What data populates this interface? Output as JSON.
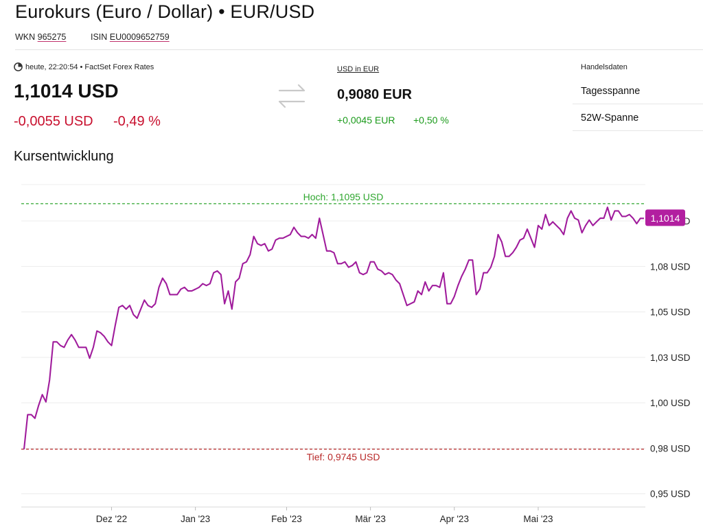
{
  "header": {
    "title": "Eurokurs (Euro / Dollar) • EUR/USD",
    "wkn_label": "WKN",
    "wkn": "965275",
    "isin_label": "ISIN",
    "isin": "EU0009652759"
  },
  "quote": {
    "timestamp": "heute, 22:20:54 • FactSet Forex Rates",
    "price": "1,1014 USD",
    "change_abs": "-0,0055 USD",
    "change_pct": "-0,49 %"
  },
  "inverse": {
    "label": "USD in EUR",
    "price": "0,9080 EUR",
    "change_abs": "+0,0045 EUR",
    "change_pct": "+0,50 %"
  },
  "trading": {
    "title": "Handelsdaten",
    "rows": [
      "Tagesspanne",
      "52W-Spanne"
    ]
  },
  "section_title": "Kursentwicklung",
  "colors": {
    "line": "#a01c9c",
    "badge": "#b21fa0",
    "high": "#2ea62e",
    "low": "#b82828",
    "negative": "#c8102e",
    "positive": "#1a9a1a"
  },
  "chart_data": {
    "type": "line",
    "ylim": [
      0.945,
      1.12
    ],
    "yticks": [
      {
        "v": 0.95,
        "label": "0,95 USD"
      },
      {
        "v": 0.975,
        "label": "0,98 USD"
      },
      {
        "v": 1.0,
        "label": "1,00 USD"
      },
      {
        "v": 1.025,
        "label": "1,03 USD"
      },
      {
        "v": 1.05,
        "label": "1,05 USD"
      },
      {
        "v": 1.075,
        "label": "1,08 USD"
      },
      {
        "v": 1.1,
        "label": "1,10 USD"
      }
    ],
    "xticks": [
      {
        "i": 24,
        "label": "Dez '22"
      },
      {
        "i": 47,
        "label": "Jan '23"
      },
      {
        "i": 72,
        "label": "Feb '23"
      },
      {
        "i": 95,
        "label": "Mär '23"
      },
      {
        "i": 118,
        "label": "Apr '23"
      },
      {
        "i": 141,
        "label": "Mai '23"
      }
    ],
    "high": {
      "value": 1.1095,
      "label": "Hoch: 1,1095 USD"
    },
    "low": {
      "value": 0.9745,
      "label": "Tief: 0,9745 USD"
    },
    "last_label": "1,1014",
    "values": [
      0.9745,
      0.9935,
      0.9935,
      0.9915,
      0.9985,
      1.0045,
      1.0005,
      1.0125,
      1.0335,
      1.0335,
      1.0315,
      1.0305,
      1.0345,
      1.0375,
      1.0345,
      1.0305,
      1.0305,
      1.0305,
      1.0245,
      1.0305,
      1.0395,
      1.0385,
      1.0365,
      1.0335,
      1.0315,
      1.0425,
      1.0525,
      1.0535,
      1.0515,
      1.0535,
      1.0485,
      1.0465,
      1.0515,
      1.0565,
      1.0535,
      1.0525,
      1.0545,
      1.0635,
      1.0685,
      1.0655,
      1.0595,
      1.0595,
      1.0595,
      1.0625,
      1.0635,
      1.0615,
      1.0615,
      1.0625,
      1.0635,
      1.0655,
      1.0645,
      1.0655,
      1.0715,
      1.0725,
      1.0705,
      1.0545,
      1.0615,
      1.0515,
      1.0665,
      1.0685,
      1.0765,
      1.0775,
      1.0815,
      1.0915,
      1.0875,
      1.0865,
      1.0875,
      1.0835,
      1.0845,
      1.0895,
      1.0905,
      1.0905,
      1.0915,
      1.0925,
      1.0965,
      1.0935,
      1.0915,
      1.0915,
      1.0905,
      1.0925,
      1.0905,
      1.1015,
      1.0925,
      1.0835,
      1.0835,
      1.0825,
      1.0765,
      1.0765,
      1.0775,
      1.0745,
      1.0755,
      1.0775,
      1.0715,
      1.0705,
      1.0715,
      1.0775,
      1.0775,
      1.0735,
      1.0725,
      1.0705,
      1.0715,
      1.0705,
      1.0675,
      1.0655,
      1.0595,
      1.0535,
      1.0545,
      1.0555,
      1.0615,
      1.0595,
      1.0665,
      1.0615,
      1.0645,
      1.0645,
      1.0635,
      1.0715,
      1.0545,
      1.0545,
      1.0585,
      1.0645,
      1.0695,
      1.0735,
      1.0785,
      1.0785,
      1.0595,
      1.0625,
      1.0715,
      1.0715,
      1.0745,
      1.0805,
      1.0925,
      1.0885,
      1.0805,
      1.0805,
      1.0825,
      1.0855,
      1.0895,
      1.0905,
      1.0955,
      1.0905,
      1.0855,
      1.0975,
      1.0955,
      1.1035,
      1.0975,
      1.0995,
      1.0975,
      1.0955,
      1.0925,
      1.1015,
      1.1055,
      1.1015,
      1.1005,
      1.0935,
      1.0975,
      1.1005,
      1.0975,
      1.0995,
      1.1015,
      1.1015,
      1.1075,
      1.1005,
      1.1055,
      1.1055,
      1.1025,
      1.1025,
      1.1035,
      1.1015,
      1.0985,
      1.1014,
      1.1014
    ]
  }
}
